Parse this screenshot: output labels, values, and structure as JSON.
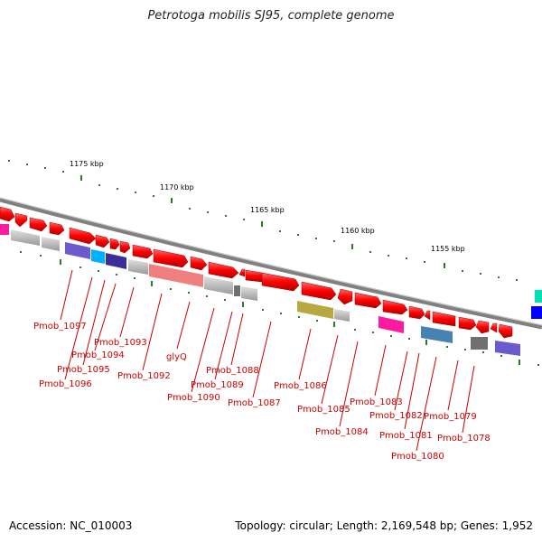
{
  "title": "Petrotoga mobilis SJ95, complete genome",
  "footer": {
    "accession": "Accession: NC_010003",
    "summary": "Topology: circular; Length: 2,169,548 bp; Genes: 1,952"
  },
  "scale_labels": [
    "1175 kbp",
    "1170 kbp",
    "1165 kbp",
    "1160 kbp",
    "1155 kbp"
  ],
  "gene_labels": [
    "Pmob_1097",
    "Pmob_1096",
    "Pmob_1095",
    "Pmob_1094",
    "Pmob_1093",
    "Pmob_1092",
    "glyQ",
    "Pmob_1090",
    "Pmob_1089",
    "Pmob_1088",
    "Pmob_1087",
    "Pmob_1086",
    "Pmob_1085",
    "Pmob_1084",
    "Pmob_1083",
    "Pmob_1082",
    "Pmob_1081",
    "Pmob_1080",
    "Pmob_1079",
    "Pmob_1078"
  ],
  "colors": {
    "backbone": "#808080",
    "gene_forward": "#ff0000",
    "label": "#cc0000",
    "tick": "#2a7a2a",
    "pseudo_gray": "#b0b0b0",
    "pink": "#ff1aa0",
    "purple": "#6a5acd",
    "cyan": "#00b0ff",
    "navy": "#3a2f9a",
    "salmon": "#f08080",
    "olive": "#b8a840",
    "steel": "#4682b4",
    "blue": "#0000ff",
    "teal": "#00e0b0"
  }
}
